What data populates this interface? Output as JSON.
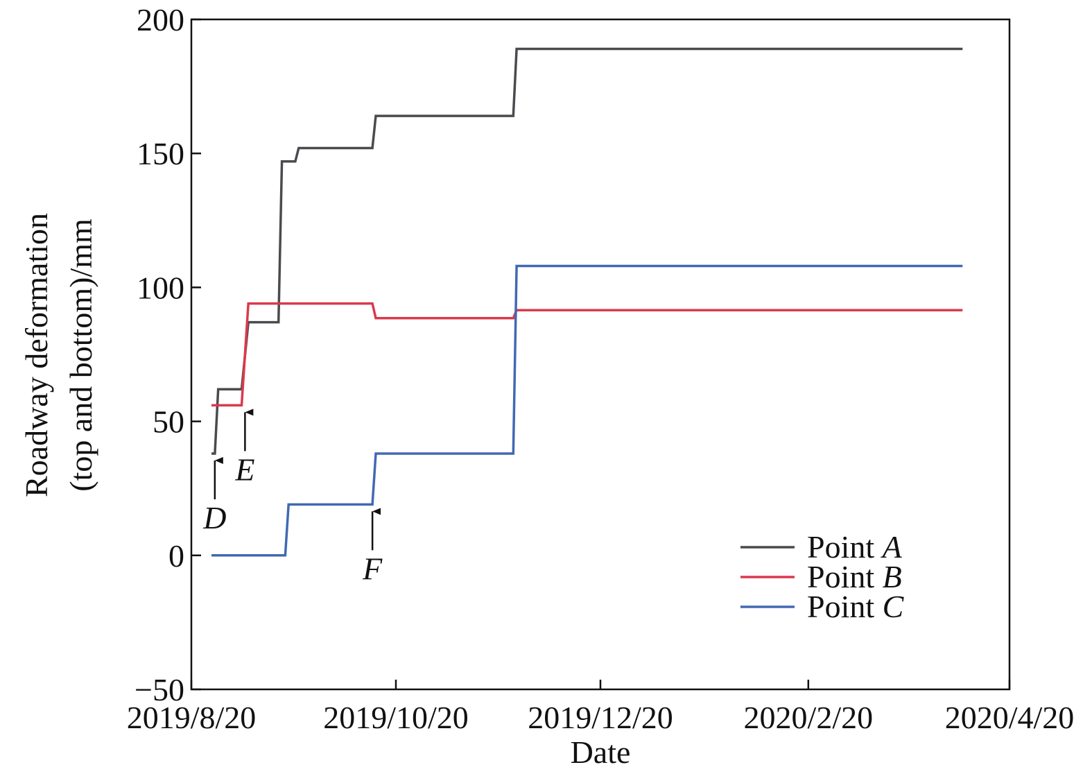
{
  "chart_data": {
    "type": "line",
    "step": true,
    "xlabel": "Date",
    "ylabel_lines": [
      "Roadway deformation",
      "(top and bottom)/mm"
    ],
    "ylim": [
      -50,
      200
    ],
    "yticks": [
      -50,
      0,
      50,
      100,
      150,
      200
    ],
    "ytick_labels": [
      "−50",
      "0",
      "50",
      "100",
      "150",
      "200"
    ],
    "xlim": [
      "2019-08-20",
      "2020-04-20"
    ],
    "xticks": [
      "2019-08-20",
      "2019-10-20",
      "2019-12-20",
      "2020-02-20",
      "2020-04-20"
    ],
    "xtick_labels": [
      "2019/8/20",
      "2019/10/20",
      "2019/12/20",
      "2020/2/20",
      "2020/4/20"
    ],
    "legend": {
      "position": "bottom-right",
      "prefix": "Point"
    },
    "series": [
      {
        "name": "A",
        "color": "#4a4a4f",
        "points": [
          [
            "2019-08-26",
            38
          ],
          [
            "2019-08-27",
            38
          ],
          [
            "2019-08-28",
            62
          ],
          [
            "2019-09-04",
            62
          ],
          [
            "2019-09-06",
            87
          ],
          [
            "2019-09-15",
            87
          ],
          [
            "2019-09-16",
            147
          ],
          [
            "2019-09-20",
            147
          ],
          [
            "2019-09-21",
            152
          ],
          [
            "2019-10-13",
            152
          ],
          [
            "2019-10-14",
            164
          ],
          [
            "2019-11-24",
            164
          ],
          [
            "2019-11-25",
            189
          ],
          [
            "2020-04-06",
            189
          ]
        ]
      },
      {
        "name": "B",
        "color": "#d93a4c",
        "points": [
          [
            "2019-08-26",
            56
          ],
          [
            "2019-09-04",
            56
          ],
          [
            "2019-09-06",
            94
          ],
          [
            "2019-10-13",
            94
          ],
          [
            "2019-10-14",
            88.5
          ],
          [
            "2019-11-24",
            88.5
          ],
          [
            "2019-11-25",
            91.5
          ],
          [
            "2020-04-06",
            91.5
          ]
        ]
      },
      {
        "name": "C",
        "color": "#4169b3",
        "points": [
          [
            "2019-08-26",
            0
          ],
          [
            "2019-09-17",
            0
          ],
          [
            "2019-09-18",
            19
          ],
          [
            "2019-10-13",
            19
          ],
          [
            "2019-10-14",
            38
          ],
          [
            "2019-11-24",
            38
          ],
          [
            "2019-11-25",
            108
          ],
          [
            "2020-04-06",
            108
          ]
        ]
      }
    ],
    "annotations": [
      {
        "label": "D",
        "x": "2019-08-27",
        "y": 38
      },
      {
        "label": "E",
        "x": "2019-09-05",
        "y": 56
      },
      {
        "label": "F",
        "x": "2019-10-13",
        "y": 19
      }
    ]
  }
}
